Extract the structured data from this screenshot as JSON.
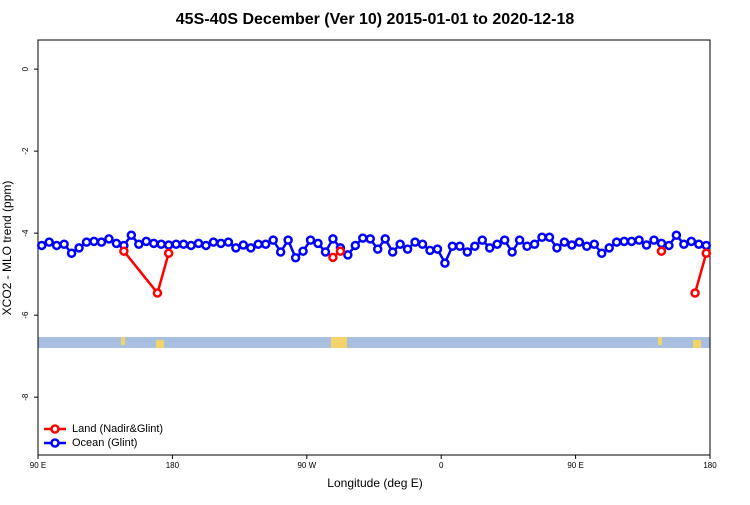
{
  "chart_data": {
    "type": "line",
    "title": "45S-40S December (Ver 10)   2015-01-01 to 2020-12-18",
    "x_label": "Longitude (deg E)",
    "y_label": "XCO2 - MLO trend (ppm)",
    "xlim": [
      90,
      540
    ],
    "ylim": [
      -9.41,
      0.71
    ],
    "xticks": [
      {
        "value": 90,
        "label": "90 E"
      },
      {
        "value": 180,
        "label": "180"
      },
      {
        "value": 270,
        "label": "90 W"
      },
      {
        "value": 360,
        "label": "0"
      },
      {
        "value": 450,
        "label": "90 E"
      },
      {
        "value": 540,
        "label": "180"
      }
    ],
    "yticks": [
      0,
      -2,
      -4,
      -6,
      -8
    ],
    "legend": "bottomleft",
    "series": [
      {
        "name": "Ocean (Glint)",
        "color": "#0000ff",
        "x": [
          92.5,
          97.5,
          102.5,
          107.5,
          112.5,
          117.5,
          122.5,
          127.5,
          132.5,
          137.5,
          142.5,
          147.5,
          152.5,
          157.5,
          162.5,
          167.5,
          172.5,
          177.5,
          182.5,
          187.5,
          192.5,
          197.5,
          202.5,
          207.5,
          212.5,
          217.5,
          222.5,
          227.5,
          232.5,
          237.5,
          242.5,
          247.5,
          252.5,
          257.5,
          262.5,
          267.5,
          272.5,
          277.5,
          282.5,
          287.5,
          292.5,
          297.5,
          302.5,
          307.5,
          312.5,
          317.5,
          322.5,
          327.5,
          332.5,
          337.5,
          342.5,
          347.5,
          352.5,
          357.5,
          362.5,
          367.5,
          372.5,
          377.5,
          382.5,
          387.5,
          392.5,
          397.5,
          402.5,
          407.5,
          412.5,
          417.5,
          422.5,
          427.5,
          432.5,
          437.5,
          442.5,
          447.5,
          452.5,
          457.5,
          462.5,
          467.5,
          472.5,
          477.5,
          482.5,
          487.5,
          492.5,
          497.5,
          502.5,
          507.5,
          512.5,
          517.5,
          522.5,
          527.5,
          532.5,
          537.5
        ],
        "values": [
          -4.3,
          -4.22,
          -4.3,
          -4.27,
          -4.49,
          -4.36,
          -4.22,
          -4.2,
          -4.22,
          -4.14,
          -4.25,
          -4.3,
          -4.05,
          -4.27,
          -4.2,
          -4.25,
          -4.27,
          -4.29,
          -4.27,
          -4.27,
          -4.3,
          -4.25,
          -4.3,
          -4.22,
          -4.25,
          -4.22,
          -4.36,
          -4.29,
          -4.36,
          -4.27,
          -4.27,
          -4.17,
          -4.46,
          -4.17,
          -4.6,
          -4.44,
          -4.17,
          -4.25,
          -4.46,
          -4.14,
          -4.36,
          -4.53,
          -4.3,
          -4.12,
          -4.14,
          -4.39,
          -4.14,
          -4.46,
          -4.27,
          -4.39,
          -4.22,
          -4.27,
          -4.42,
          -4.39,
          -4.73,
          -4.32,
          -4.32,
          -4.46,
          -4.32,
          -4.17,
          -4.36,
          -4.27,
          -4.17,
          -4.46,
          -4.17,
          -4.32,
          -4.27,
          -4.1,
          -4.1,
          -4.36,
          -4.22,
          -4.29,
          -4.22,
          -4.32,
          -4.27,
          -4.49,
          -4.36,
          -4.22,
          -4.2,
          -4.2,
          -4.17,
          -4.29,
          -4.17,
          -4.25,
          -4.3,
          -4.05,
          -4.27,
          -4.2,
          -4.27,
          -4.3
        ]
      },
      {
        "name": "Land (Nadir&Glint)",
        "color": "#ff0000",
        "x": [
          147.5,
          170,
          177.5,
          232.5,
          287.5,
          292.5,
          400,
          507.5,
          520,
          530,
          537.5
        ],
        "values": [
          -4.44,
          -5.46,
          -4.49,
          null,
          -4.59,
          -4.44,
          null,
          -4.44,
          null,
          -5.46,
          -4.49
        ]
      }
    ]
  }
}
